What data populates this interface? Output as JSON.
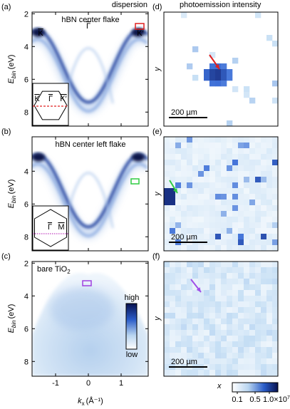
{
  "headers": {
    "dispersion": "dispersion",
    "intensity": "photoemission intensity"
  },
  "dispersion_panels": [
    {
      "label": "(a)",
      "title": "hBN center flake",
      "points": [
        "K",
        "Γ",
        "K′"
      ],
      "inset": [
        "K",
        "Γ",
        "K′"
      ],
      "yticks": [
        2,
        4,
        6,
        8
      ]
    },
    {
      "label": "(b)",
      "title": "hBN center left flake",
      "inset": [
        "Γ",
        "M"
      ],
      "yticks": [
        4,
        6,
        8
      ]
    },
    {
      "label": "(c)",
      "title": {
        "main": "bare TiO",
        "sub": "2"
      },
      "colorbar": [
        "high",
        "low"
      ],
      "yticks": [
        2,
        4,
        6,
        8
      ],
      "xticks": [
        -1,
        0,
        1
      ]
    }
  ],
  "ylabel": {
    "main": "E",
    "sub": "bin",
    "unit": "(eV)"
  },
  "xlabel": {
    "main": "k",
    "sub": "x",
    "unit": "(Å⁻¹)"
  },
  "map_panels": [
    {
      "label": "(d)",
      "scale": "200 µm"
    },
    {
      "label": "(e)",
      "scale": "200 µm"
    },
    {
      "label": "(f)",
      "scale": "200 µm"
    }
  ],
  "map_axes": {
    "y": "y",
    "x": "x"
  },
  "colorbar": {
    "ticks": [
      "0.1",
      "0.5",
      {
        "main": "1.0×10",
        "sup": "7"
      }
    ]
  }
}
